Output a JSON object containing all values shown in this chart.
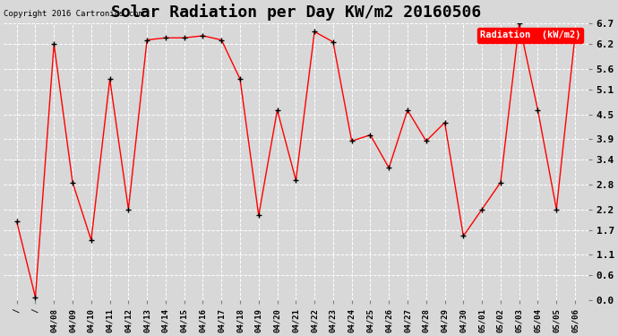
{
  "title": "Solar Radiation per Day KW/m2 20160506",
  "copyright": "Copyright 2016 Cartronics.com",
  "legend_label": "Radiation  (kW/m2)",
  "x_labels": [
    "/",
    "/",
    "04/08",
    "04/09",
    "04/10",
    "04/11",
    "04/12",
    "04/13",
    "04/14",
    "04/15",
    "04/16",
    "04/17",
    "04/18",
    "04/19",
    "04/20",
    "04/21",
    "04/22",
    "04/23",
    "04/24",
    "04/25",
    "04/26",
    "04/27",
    "04/28",
    "04/29",
    "04/30",
    "05/01",
    "05/02",
    "05/03",
    "05/04",
    "05/05",
    "05/06"
  ],
  "y_values": [
    1.9,
    0.07,
    6.2,
    2.85,
    1.45,
    5.35,
    2.2,
    6.3,
    6.35,
    6.35,
    6.4,
    6.3,
    5.35,
    2.05,
    4.6,
    2.9,
    6.5,
    6.25,
    3.85,
    4.0,
    3.2,
    4.6,
    3.85,
    4.3,
    1.55,
    2.2,
    2.85,
    6.7,
    4.6,
    2.2,
    6.4
  ],
  "ylim": [
    0.0,
    6.7
  ],
  "yticks": [
    0.0,
    0.6,
    1.1,
    1.7,
    2.2,
    2.8,
    3.4,
    3.9,
    4.5,
    5.1,
    5.6,
    6.2,
    6.7
  ],
  "line_color": "red",
  "marker_color": "black",
  "bg_color": "#d8d8d8",
  "grid_color": "white",
  "title_fontsize": 13,
  "legend_bg_color": "red",
  "legend_text_color": "white"
}
